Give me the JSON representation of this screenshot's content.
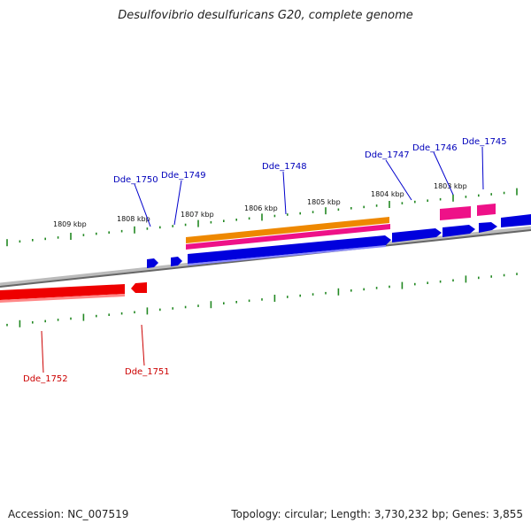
{
  "title": "Desulfovibrio desulfuricans G20, complete genome",
  "footer": {
    "accession": "Accession: NC_007519",
    "stats": "Topology: circular; Length: 3,730,232 bp; Genes: 3,855"
  },
  "colors": {
    "backbone": "#888888",
    "tick": "#228822",
    "forward_gene": "#0000dd",
    "reverse_gene": "#ee0000",
    "rna_pink": "#ee1188",
    "rna_orange": "#ee8800",
    "forward_label": "#0000bb",
    "reverse_label": "#cc0000"
  },
  "scale_labels": [
    "1809 kbp",
    "1808 kbp",
    "1807 kbp",
    "1806 kbp",
    "1805 kbp",
    "1804 kbp",
    "1803 kbp"
  ],
  "forward_genes": [
    "Dde_1750",
    "Dde_1749",
    "Dde_1748",
    "Dde_1747",
    "Dde_1746",
    "Dde_1745"
  ],
  "reverse_genes": [
    "Dde_1752",
    "Dde_1751"
  ]
}
